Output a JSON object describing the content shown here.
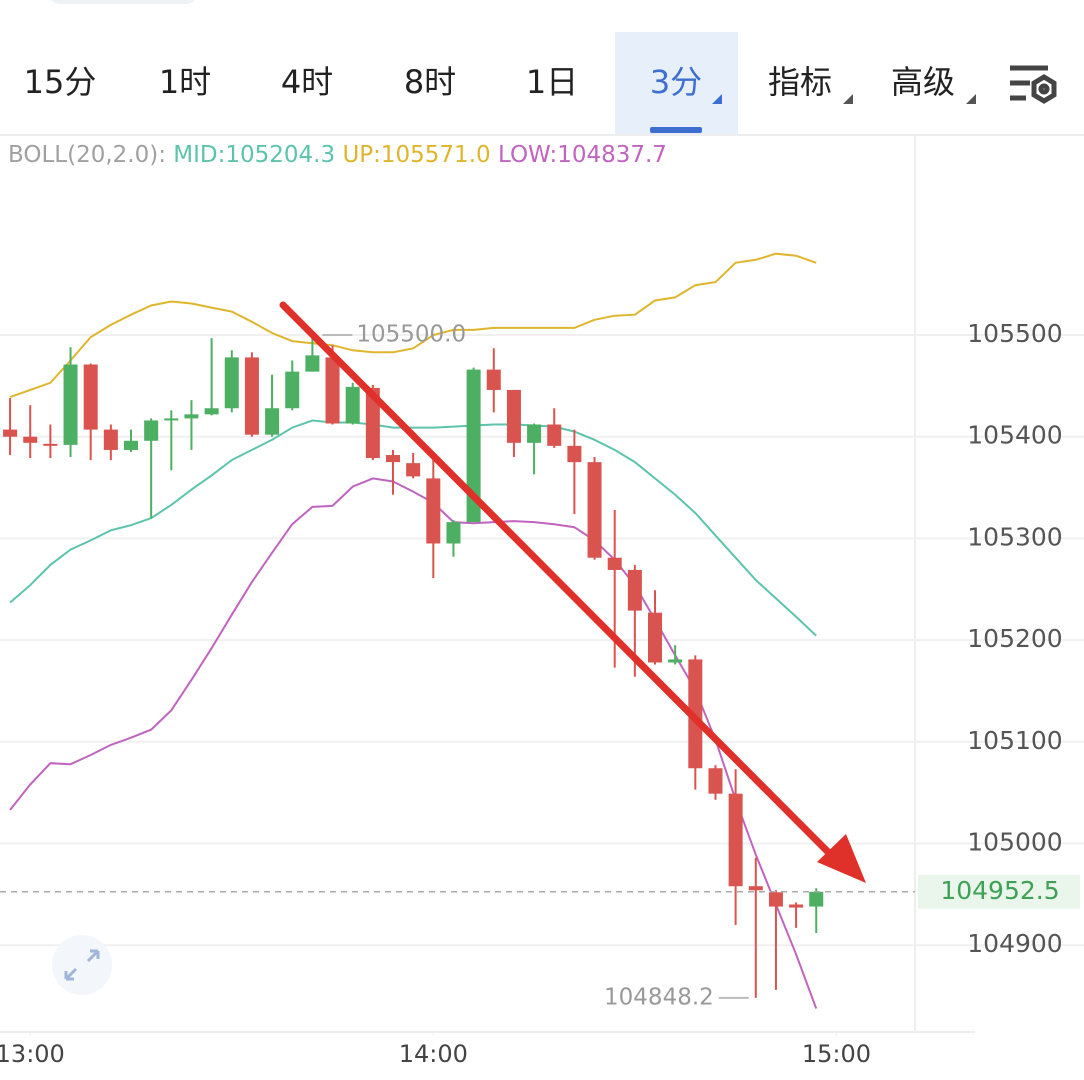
{
  "tabs": [
    "15分",
    "1时",
    "4时",
    "8时",
    "1日",
    "3分",
    "指标",
    "高级"
  ],
  "active_tab": 5,
  "chart_data": {
    "type": "candlestick",
    "x": [
      -3,
      0,
      3,
      6,
      9,
      12,
      15,
      18,
      21,
      24,
      27,
      30,
      33,
      36,
      39,
      42,
      45,
      48,
      51,
      54,
      57,
      60,
      63,
      66,
      69,
      72,
      75,
      78,
      81,
      84,
      87,
      90,
      93,
      96,
      99,
      102,
      105,
      108,
      111,
      114,
      117
    ],
    "open": [
      105407,
      105400,
      105393,
      105392,
      105471,
      105407,
      105387,
      105396,
      105416,
      105418,
      105422,
      105428,
      105478,
      105402,
      105428,
      105464,
      105478,
      105413,
      105448,
      105382,
      105374,
      105359,
      105295,
      105316,
      105466,
      105446,
      105394,
      105412,
      105391,
      105375,
      105281,
      105269,
      105227,
      105178,
      105181,
      105074,
      105049,
      104958,
      104952,
      104940,
      104938
    ],
    "high": [
      105438,
      105431,
      105412,
      105488,
      105472,
      105412,
      105407,
      105418,
      105426,
      105436,
      105497,
      105485,
      105483,
      105461,
      105475,
      105500,
      105490,
      105453,
      105451,
      105387,
      105384,
      105382,
      105318,
      105468,
      105487,
      105446,
      105413,
      105428,
      105407,
      105380,
      105328,
      105274,
      105249,
      105195,
      105185,
      105077,
      105073,
      104986,
      104954,
      104942,
      104956
    ],
    "low": [
      105382,
      105379,
      105379,
      105380,
      105377,
      105377,
      105385,
      105320,
      105367,
      105387,
      105421,
      105424,
      105400,
      105400,
      105426,
      105464,
      105412,
      105412,
      105377,
      105343,
      105359,
      105261,
      105282,
      105316,
      105424,
      105380,
      105363,
      105389,
      105324,
      105279,
      105173,
      105164,
      105176,
      105176,
      105053,
      105043,
      104920,
      104848.2,
      104856,
      104917,
      104912
    ],
    "close": [
      105400,
      105394,
      105392,
      105471,
      105407,
      105387,
      105396,
      105416,
      105418,
      105422,
      105428,
      105478,
      105402,
      105428,
      105464,
      105480,
      105413,
      105449,
      105379,
      105375,
      105361,
      105295,
      105316,
      105466,
      105446,
      105394,
      105412,
      105391,
      105375,
      105281,
      105269,
      105229,
      105178,
      105181,
      105074,
      105049,
      104958,
      104954,
      104938,
      104937,
      104952.5
    ],
    "up_color": "#4caf62",
    "down_color": "#d9534f",
    "indicator": {
      "label": "BOLL(20,2.0):",
      "series": [
        {
          "name": "MID:105204.3",
          "color": "#5cc4ad",
          "values": [
            105237,
            105254,
            105274,
            105289,
            105298,
            105308,
            105313,
            105320,
            105333,
            105348,
            105362,
            105377,
            105387,
            105397,
            105409,
            105416,
            105414,
            105414,
            105412,
            105409,
            105409,
            105409,
            105410,
            105411,
            105412,
            105412,
            105411,
            105410,
            105405,
            105397,
            105387,
            105375,
            105359,
            105343,
            105325,
            105303,
            105281,
            105259,
            105241,
            105223,
            105204.3
          ]
        },
        {
          "name": "UP:105571.0",
          "color": "#dfb52c",
          "values": [
            105439,
            105446,
            105453,
            105475,
            105498,
            105510,
            105520,
            105529,
            105533,
            105531,
            105527,
            105523,
            105513,
            105502,
            105494,
            105492,
            105490,
            105485,
            105483,
            105483,
            105487,
            105500,
            105505,
            105505,
            105507,
            105507,
            105507,
            105507,
            105507,
            105515,
            105519,
            105520,
            105534,
            105537,
            105549,
            105552,
            105571,
            105574,
            105580,
            105578,
            105571.0
          ]
        },
        {
          "name": "LOW:104837.7",
          "color": "#c064c0",
          "values": [
            105033,
            105058,
            105079,
            105078,
            105087,
            105097,
            105104,
            105112,
            105131,
            105161,
            105192,
            105225,
            105257,
            105286,
            105314,
            105331,
            105332,
            105351,
            105359,
            105356,
            105346,
            105335,
            105316,
            105315,
            105316,
            105317,
            105316,
            105314,
            105311,
            105298,
            105279,
            105254,
            105220,
            105185,
            105151,
            105102,
            105043,
            104989,
            104940,
            104891,
            104837.7
          ]
        }
      ]
    },
    "max_label": {
      "value": 105500,
      "label": "105500.0"
    },
    "min_label": 104848.2,
    "last_price": 104952.5,
    "xlim": [
      -4.5,
      131.7
    ],
    "xticks": [
      {
        "value": 0,
        "label": "13:00"
      },
      {
        "value": 60,
        "label": "14:00"
      },
      {
        "value": 120,
        "label": "15:00"
      }
    ],
    "ylim": [
      104816.6,
      105696.7
    ],
    "yticks": [
      104900,
      105000,
      105100,
      105200,
      105300,
      105400,
      105500
    ],
    "grid": true
  }
}
